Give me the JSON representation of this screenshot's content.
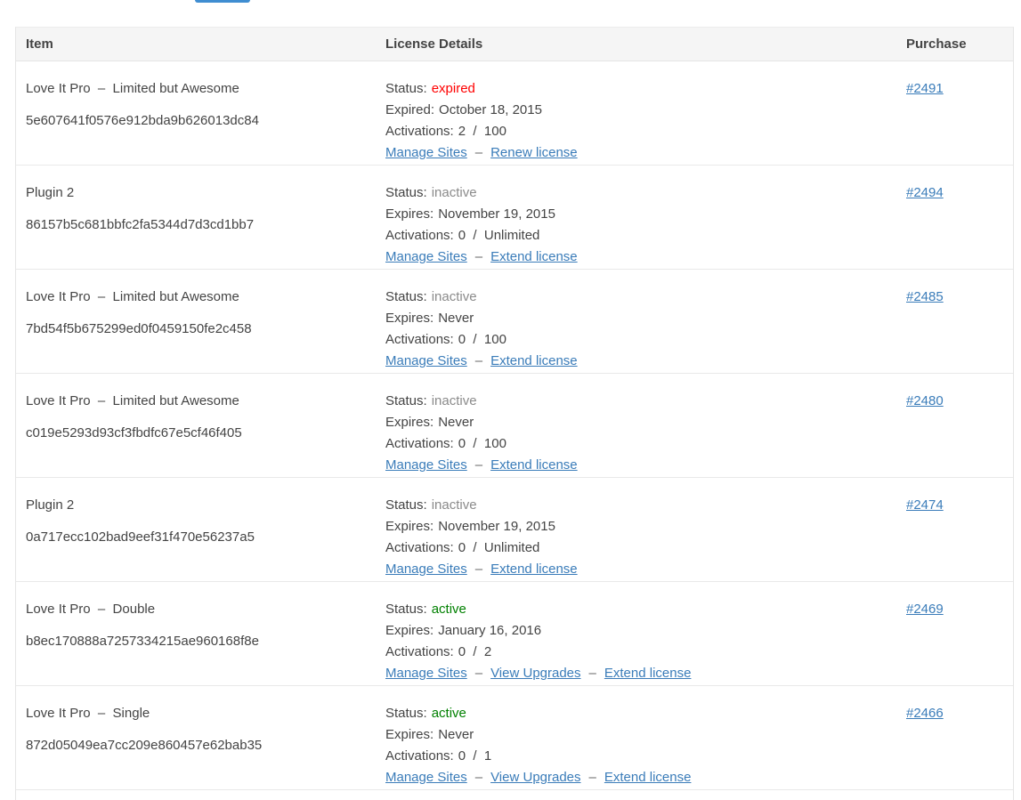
{
  "page": {
    "partial_top_button": {
      "label": ""
    }
  },
  "colors": {
    "link": "#3a7cb9",
    "status_expired": "#ff0000",
    "status_inactive": "#8b8b8b",
    "status_active": "#008000",
    "header_bg": "#f5f5f5",
    "top_button_blue": "#3f8dd1"
  },
  "table": {
    "headers": {
      "item": "Item",
      "license": "License Details",
      "purchase": "Purchase"
    },
    "rows": [
      {
        "item_name": "Love It Pro  –  Limited but Awesome",
        "license_key": "5e607641f0576e912bda9b626013dc84",
        "status_label": "Status:",
        "status": "expired",
        "status_type": "expired",
        "expiry_label": "Expired:",
        "expiry": "October 18, 2015",
        "activations_label": "Activations:",
        "activations": "2  /  100",
        "links": [
          "Manage Sites",
          "Renew license"
        ],
        "purchase": "#2491"
      },
      {
        "item_name": "Plugin 2",
        "license_key": "86157b5c681bbfc2fa5344d7d3cd1bb7",
        "status_label": "Status:",
        "status": "inactive",
        "status_type": "inactive",
        "expiry_label": "Expires:",
        "expiry": "November 19, 2015",
        "activations_label": "Activations:",
        "activations": "0  /  Unlimited",
        "links": [
          "Manage Sites",
          "Extend license"
        ],
        "purchase": "#2494"
      },
      {
        "item_name": "Love It Pro  –  Limited but Awesome",
        "license_key": "7bd54f5b675299ed0f0459150fe2c458",
        "status_label": "Status:",
        "status": "inactive",
        "status_type": "inactive",
        "expiry_label": "Expires:",
        "expiry": "Never",
        "activations_label": "Activations:",
        "activations": "0  /  100",
        "links": [
          "Manage Sites",
          "Extend license"
        ],
        "purchase": "#2485"
      },
      {
        "item_name": "Love It Pro  –  Limited but Awesome",
        "license_key": "c019e5293d93cf3fbdfc67e5cf46f405",
        "status_label": "Status:",
        "status": "inactive",
        "status_type": "inactive",
        "expiry_label": "Expires:",
        "expiry": "Never",
        "activations_label": "Activations:",
        "activations": "0  /  100",
        "links": [
          "Manage Sites",
          "Extend license"
        ],
        "purchase": "#2480"
      },
      {
        "item_name": "Plugin 2",
        "license_key": "0a717ecc102bad9eef31f470e56237a5",
        "status_label": "Status:",
        "status": "inactive",
        "status_type": "inactive",
        "expiry_label": "Expires:",
        "expiry": "November 19, 2015",
        "activations_label": "Activations:",
        "activations": "0  /  Unlimited",
        "links": [
          "Manage Sites",
          "Extend license"
        ],
        "purchase": "#2474"
      },
      {
        "item_name": "Love It Pro  –  Double",
        "license_key": "b8ec170888a7257334215ae960168f8e",
        "status_label": "Status:",
        "status": "active",
        "status_type": "active",
        "expiry_label": "Expires:",
        "expiry": "January 16, 2016",
        "activations_label": "Activations:",
        "activations": "0  /  2",
        "links": [
          "Manage Sites",
          "View Upgrades",
          "Extend license"
        ],
        "purchase": "#2469"
      },
      {
        "item_name": "Love It Pro  –  Single",
        "license_key": "872d05049ea7cc209e860457e62bab35",
        "status_label": "Status:",
        "status": "active",
        "status_type": "active",
        "expiry_label": "Expires:",
        "expiry": "Never",
        "activations_label": "Activations:",
        "activations": "0  /  1",
        "links": [
          "Manage Sites",
          "View Upgrades",
          "Extend license"
        ],
        "purchase": "#2466"
      }
    ]
  }
}
